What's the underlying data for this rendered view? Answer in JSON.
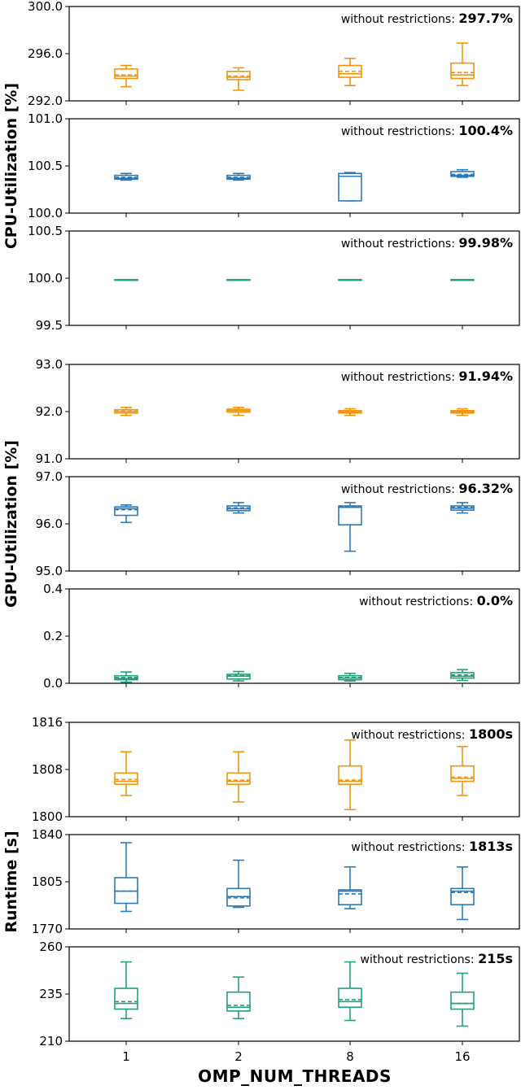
{
  "chart_data": {
    "type": "box",
    "xlabel": "OMP_NUM_THREADS",
    "categories": [
      "1",
      "2",
      "8",
      "16"
    ],
    "colors": {
      "orange": "#f0950e",
      "blue": "#2b7bba",
      "green": "#22a07d"
    },
    "group_labels": [
      {
        "label": "CPU-Utilization [%]",
        "panels": [
          0,
          1,
          2
        ]
      },
      {
        "label": "GPU-Utilization [%]",
        "panels": [
          3,
          4,
          5
        ]
      },
      {
        "label": "Runtime [s]",
        "panels": [
          6,
          7,
          8
        ]
      }
    ],
    "panels": [
      {
        "color": "orange",
        "ylim": [
          292.0,
          300.0
        ],
        "yticks": [
          "292.0",
          "296.0",
          "300.0"
        ],
        "annotation_label": "without restrictions:",
        "annotation_value": "297.7%",
        "boxes": [
          {
            "whislo": 293.2,
            "q1": 293.9,
            "med": 294.1,
            "mean": 294.2,
            "q3": 294.7,
            "whishi": 295.0
          },
          {
            "whislo": 292.9,
            "q1": 293.8,
            "med": 294.0,
            "mean": 294.1,
            "q3": 294.5,
            "whishi": 294.8
          },
          {
            "whislo": 293.3,
            "q1": 294.0,
            "med": 294.3,
            "mean": 294.5,
            "q3": 295.0,
            "whishi": 295.6
          },
          {
            "whislo": 293.3,
            "q1": 293.9,
            "med": 294.2,
            "mean": 294.4,
            "q3": 295.2,
            "whishi": 296.9
          }
        ]
      },
      {
        "color": "blue",
        "ylim": [
          100.0,
          101.0
        ],
        "yticks": [
          "100.0",
          "100.5",
          "101.0"
        ],
        "annotation_label": "without restrictions:",
        "annotation_value": "100.4%",
        "boxes": [
          {
            "whislo": 100.35,
            "q1": 100.36,
            "med": 100.37,
            "mean": 100.38,
            "q3": 100.4,
            "whishi": 100.42
          },
          {
            "whislo": 100.35,
            "q1": 100.36,
            "med": 100.37,
            "mean": 100.38,
            "q3": 100.4,
            "whishi": 100.42
          },
          {
            "whislo": 100.13,
            "q1": 100.13,
            "med": 100.39,
            "mean": 100.39,
            "q3": 100.42,
            "whishi": 100.43
          },
          {
            "whislo": 100.38,
            "q1": 100.39,
            "med": 100.4,
            "mean": 100.41,
            "q3": 100.44,
            "whishi": 100.46
          }
        ]
      },
      {
        "color": "green",
        "ylim": [
          99.5,
          100.5
        ],
        "yticks": [
          "99.5",
          "100.0",
          "100.5"
        ],
        "annotation_label": "without restrictions:",
        "annotation_value": "99.98%",
        "boxes": [
          {
            "whislo": 99.98,
            "q1": 99.98,
            "med": 99.98,
            "mean": 99.98,
            "q3": 99.985,
            "whishi": 99.985
          },
          {
            "whislo": 99.98,
            "q1": 99.98,
            "med": 99.98,
            "mean": 99.98,
            "q3": 99.985,
            "whishi": 99.985
          },
          {
            "whislo": 99.98,
            "q1": 99.98,
            "med": 99.98,
            "mean": 99.98,
            "q3": 99.985,
            "whishi": 99.985
          },
          {
            "whislo": 99.98,
            "q1": 99.98,
            "med": 99.98,
            "mean": 99.98,
            "q3": 99.985,
            "whishi": 99.985
          }
        ]
      },
      {
        "color": "orange",
        "ylim": [
          91.0,
          93.0
        ],
        "yticks": [
          "91.0",
          "92.0",
          "93.0"
        ],
        "annotation_label": "without restrictions:",
        "annotation_value": "91.94%",
        "boxes": [
          {
            "whislo": 91.92,
            "q1": 91.97,
            "med": 92.0,
            "mean": 92.01,
            "q3": 92.04,
            "whishi": 92.09
          },
          {
            "whislo": 91.92,
            "q1": 91.99,
            "med": 92.02,
            "mean": 92.03,
            "q3": 92.05,
            "whishi": 92.09
          },
          {
            "whislo": 91.92,
            "q1": 91.97,
            "med": 91.99,
            "mean": 92.0,
            "q3": 92.02,
            "whishi": 92.06
          },
          {
            "whislo": 91.92,
            "q1": 91.97,
            "med": 91.99,
            "mean": 92.0,
            "q3": 92.02,
            "whishi": 92.06
          }
        ]
      },
      {
        "color": "blue",
        "ylim": [
          95.0,
          97.0
        ],
        "yticks": [
          "95.0",
          "96.0",
          "97.0"
        ],
        "annotation_label": "without restrictions:",
        "annotation_value": "96.32%",
        "boxes": [
          {
            "whislo": 96.03,
            "q1": 96.18,
            "med": 96.32,
            "mean": 96.3,
            "q3": 96.36,
            "whishi": 96.4
          },
          {
            "whislo": 96.23,
            "q1": 96.28,
            "med": 96.32,
            "mean": 96.34,
            "q3": 96.38,
            "whishi": 96.45
          },
          {
            "whislo": 95.42,
            "q1": 95.98,
            "med": 96.35,
            "mean": 96.36,
            "q3": 96.38,
            "whishi": 96.45
          },
          {
            "whislo": 96.23,
            "q1": 96.29,
            "med": 96.33,
            "mean": 96.35,
            "q3": 96.38,
            "whishi": 96.45
          }
        ]
      },
      {
        "color": "green",
        "ylim": [
          0.0,
          0.4
        ],
        "yticks": [
          "0.0",
          "0.2",
          "0.4"
        ],
        "annotation_label": "without restrictions:",
        "annotation_value": "0.0%",
        "boxes": [
          {
            "whislo": 0.005,
            "q1": 0.015,
            "med": 0.02,
            "mean": 0.025,
            "q3": 0.032,
            "whishi": 0.048
          },
          {
            "whislo": 0.01,
            "q1": 0.018,
            "med": 0.03,
            "mean": 0.032,
            "q3": 0.038,
            "whishi": 0.05
          },
          {
            "whislo": 0.01,
            "q1": 0.015,
            "med": 0.022,
            "mean": 0.025,
            "q3": 0.032,
            "whishi": 0.042
          },
          {
            "whislo": 0.012,
            "q1": 0.022,
            "med": 0.03,
            "mean": 0.035,
            "q3": 0.045,
            "whishi": 0.058
          }
        ]
      },
      {
        "color": "orange",
        "ylim": [
          1800,
          1816
        ],
        "yticks": [
          "1800",
          "1808",
          "1816"
        ],
        "annotation_label": "without restrictions:",
        "annotation_value": "1800s",
        "boxes": [
          {
            "whislo": 1803.6,
            "q1": 1805.5,
            "med": 1806.0,
            "mean": 1806.3,
            "q3": 1807.4,
            "whishi": 1811.0
          },
          {
            "whislo": 1802.5,
            "q1": 1805.5,
            "med": 1806.0,
            "mean": 1806.2,
            "q3": 1807.4,
            "whishi": 1811.0
          },
          {
            "whislo": 1801.2,
            "q1": 1805.5,
            "med": 1806.0,
            "mean": 1806.2,
            "q3": 1808.6,
            "whishi": 1813.0
          },
          {
            "whislo": 1803.6,
            "q1": 1806.0,
            "med": 1806.5,
            "mean": 1806.7,
            "q3": 1808.6,
            "whishi": 1811.9
          }
        ]
      },
      {
        "color": "blue",
        "ylim": [
          1770,
          1840
        ],
        "yticks": [
          "1770",
          "1805",
          "1840"
        ],
        "annotation_label": "without restrictions:",
        "annotation_value": "1813s",
        "boxes": [
          {
            "whislo": 1783,
            "q1": 1789,
            "med": 1798,
            "mean": 1798,
            "q3": 1808,
            "whishi": 1834
          },
          {
            "whislo": 1786,
            "q1": 1787,
            "med": 1794,
            "mean": 1793,
            "q3": 1800,
            "whishi": 1821
          },
          {
            "whislo": 1785,
            "q1": 1788,
            "med": 1798,
            "mean": 1796,
            "q3": 1799,
            "whishi": 1816
          },
          {
            "whislo": 1777,
            "q1": 1788,
            "med": 1798,
            "mean": 1797,
            "q3": 1800,
            "whishi": 1816
          }
        ]
      },
      {
        "color": "green",
        "ylim": [
          210,
          260
        ],
        "yticks": [
          "210",
          "235",
          "260"
        ],
        "annotation_label": "without restrictions:",
        "annotation_value": "215s",
        "boxes": [
          {
            "whislo": 222,
            "q1": 227,
            "med": 230,
            "mean": 231,
            "q3": 238,
            "whishi": 252
          },
          {
            "whislo": 222,
            "q1": 226,
            "med": 228,
            "mean": 229,
            "q3": 236,
            "whishi": 244
          },
          {
            "whislo": 221,
            "q1": 228,
            "med": 231,
            "mean": 232,
            "q3": 238,
            "whishi": 252
          },
          {
            "whislo": 218,
            "q1": 227,
            "med": 230,
            "mean": 230,
            "q3": 236,
            "whishi": 246
          }
        ]
      }
    ]
  }
}
